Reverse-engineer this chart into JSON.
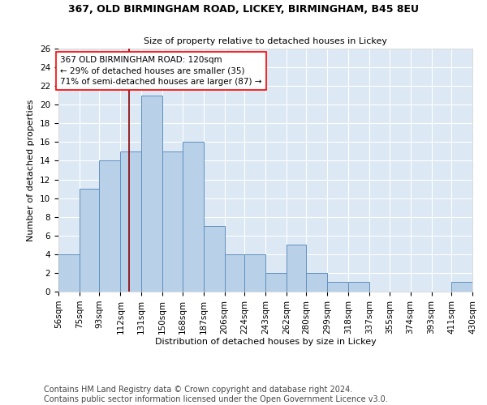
{
  "title": "367, OLD BIRMINGHAM ROAD, LICKEY, BIRMINGHAM, B45 8EU",
  "subtitle": "Size of property relative to detached houses in Lickey",
  "xlabel": "Distribution of detached houses by size in Lickey",
  "ylabel": "Number of detached properties",
  "bar_color": "#b8d0e8",
  "bar_edge_color": "#6090c0",
  "bg_color": "#dce8f4",
  "grid_color": "#ffffff",
  "annotation_text": "367 OLD BIRMINGHAM ROAD: 120sqm\n← 29% of detached houses are smaller (35)\n71% of semi-detached houses are larger (87) →",
  "bin_edges": [
    56,
    75,
    93,
    112,
    131,
    150,
    168,
    187,
    206,
    224,
    243,
    262,
    280,
    299,
    318,
    337,
    355,
    374,
    393,
    411,
    430
  ],
  "bin_labels": [
    "56sqm",
    "75sqm",
    "93sqm",
    "112sqm",
    "131sqm",
    "150sqm",
    "168sqm",
    "187sqm",
    "206sqm",
    "224sqm",
    "243sqm",
    "262sqm",
    "280sqm",
    "299sqm",
    "318sqm",
    "337sqm",
    "355sqm",
    "374sqm",
    "393sqm",
    "411sqm",
    "430sqm"
  ],
  "counts": [
    4,
    11,
    14,
    15,
    21,
    15,
    16,
    7,
    4,
    4,
    2,
    5,
    2,
    1,
    1,
    0,
    0,
    0,
    0,
    1
  ],
  "vline_x": 120,
  "ylim": [
    0,
    26
  ],
  "yticks": [
    0,
    2,
    4,
    6,
    8,
    10,
    12,
    14,
    16,
    18,
    20,
    22,
    24,
    26
  ],
  "footer": "Contains HM Land Registry data © Crown copyright and database right 2024.\nContains public sector information licensed under the Open Government Licence v3.0.",
  "footer_fontsize": 7,
  "title_fontsize": 9,
  "subtitle_fontsize": 8,
  "axis_fontsize": 8,
  "tick_fontsize": 7.5,
  "ann_fontsize": 7.5
}
